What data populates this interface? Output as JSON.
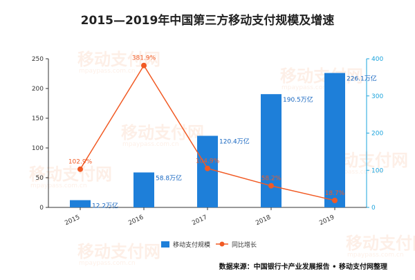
{
  "chart_data": {
    "type": "bar",
    "title": "2015—2019年中国第三方移动支付规模及增速",
    "categories": [
      "2015",
      "2016",
      "2017",
      "2018",
      "2019"
    ],
    "series": [
      {
        "name": "移动支付规模",
        "type": "bar",
        "axis": "left",
        "values": [
          12.2,
          58.8,
          120.4,
          190.5,
          226.1
        ],
        "labels": [
          "12.2万亿",
          "58.8万亿",
          "120.4万亿",
          "190.5万亿",
          "226.1万亿"
        ],
        "color": "#1e7fd9"
      },
      {
        "name": "同比增长",
        "type": "line",
        "axis": "right",
        "values": [
          102.9,
          381.9,
          104.9,
          58.2,
          18.7
        ],
        "labels": [
          "102.9%",
          "381.9%",
          "104.9%",
          "58.2%",
          "18.7%"
        ],
        "color": "#f15a24"
      }
    ],
    "y_left": {
      "range": [
        0,
        250
      ],
      "ticks": [
        "0",
        "50",
        "100",
        "150",
        "200",
        "250"
      ]
    },
    "y_right": {
      "range": [
        0,
        400
      ],
      "ticks": [
        "0",
        "100",
        "200",
        "300",
        "400"
      ],
      "color": "#1aa3dc"
    },
    "grid": false,
    "legend_position": "bottom-center",
    "source": "数据来源：中国银行卡产业发展报告 • 移动支付网整理",
    "watermark": {
      "text": "移动支付网",
      "subtext": "mpaypass.com.cn"
    }
  }
}
